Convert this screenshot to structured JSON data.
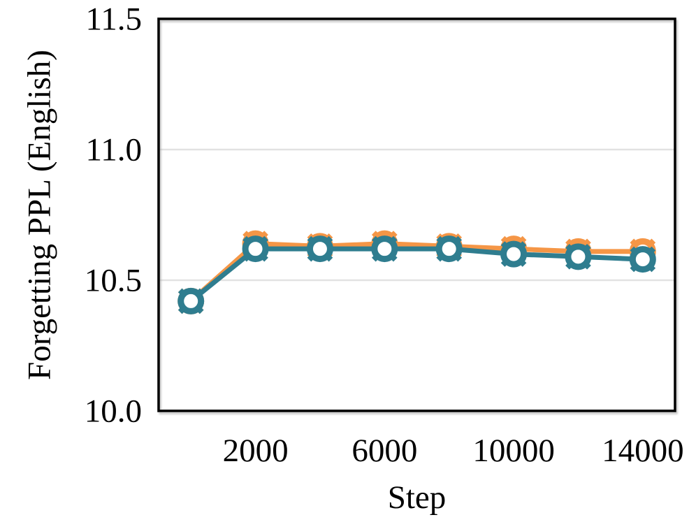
{
  "chart_data": {
    "type": "line",
    "title": "",
    "xlabel": "Step",
    "ylabel": "Forgetting PPL (English)",
    "x": [
      0,
      2000,
      4000,
      6000,
      8000,
      10000,
      12000,
      14000
    ],
    "series": [
      {
        "name": "orange-series",
        "color": "#F59646",
        "marker": "open-circle-with-x",
        "values": [
          10.42,
          10.64,
          10.63,
          10.64,
          10.63,
          10.62,
          10.61,
          10.61
        ]
      },
      {
        "name": "teal-series",
        "color": "#2F7D8F",
        "marker": "open-circle-with-x",
        "values": [
          10.42,
          10.62,
          10.62,
          10.62,
          10.62,
          10.6,
          10.59,
          10.58
        ]
      }
    ],
    "xtick_values": [
      2000,
      6000,
      10000,
      14000
    ],
    "xtick_labels": [
      "2000",
      "6000",
      "10000",
      "14000"
    ],
    "ytick_values": [
      10.0,
      10.5,
      11.0,
      11.5
    ],
    "ytick_labels": [
      "10.0",
      "10.5",
      "11.0",
      "11.5"
    ],
    "xlim": [
      -1000,
      15000
    ],
    "ylim": [
      10.0,
      11.5
    ],
    "gridline_values": [
      10.5,
      11.0
    ],
    "grid_on": true,
    "legend": "none",
    "colors": {
      "grid": "#E2E2E2",
      "frame": "#000000",
      "text": "#000000",
      "background": "#FFFFFF"
    }
  }
}
